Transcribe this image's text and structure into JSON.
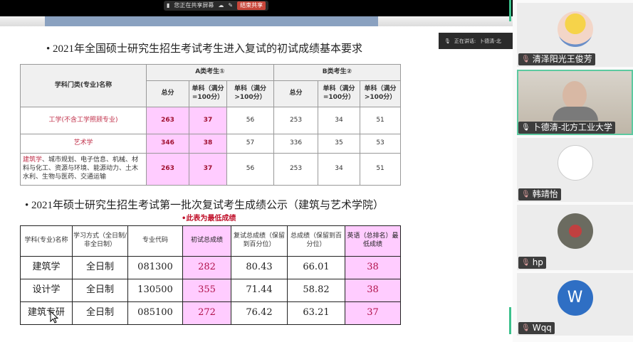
{
  "share_bar": {
    "status": "您正在共享屏幕",
    "stop_label": "结束共享"
  },
  "speaking": {
    "label": "正在讲话:",
    "name": "卜德清-北"
  },
  "slide": {
    "title1": "• 2021年全国硕士研究生招生考试考生进入复试的初试成绩基本要求",
    "table1": {
      "header": {
        "subject": "学科门类(专业)名称",
        "groupA": "A类考生①",
        "groupB": "B类考生②",
        "cols": [
          "总分",
          "单科（满分=100分）",
          "单科（满分>100分）",
          "总分",
          "单科（满分=100分）",
          "单科（满分>100分）"
        ]
      },
      "rows": [
        {
          "name": "工学(不含工学照顾专业)",
          "values": [
            "263",
            "37",
            "56",
            "253",
            "34",
            "51"
          ]
        },
        {
          "name": "艺术学",
          "values": [
            "346",
            "38",
            "57",
            "336",
            "35",
            "53"
          ]
        },
        {
          "name_red": "建筑学",
          "name_rest": "、城市规划、电子信息、机械、材料与化工、资源与环境、能源动力、土木水利、生物与医药、交通运输",
          "values": [
            "263",
            "37",
            "56",
            "253",
            "34",
            "51"
          ]
        }
      ]
    },
    "title2": "• 2021年硕士研究生招生考试第一批次复试考生成绩公示（建筑与艺术学院）",
    "note": "•此表为最低成绩",
    "table2": {
      "headers": [
        "学科(专业)名称",
        "学习方式（全日制/非全日制）",
        "专业代码",
        "初试总成绩",
        "复试总成绩（保留到百分位）",
        "总成绩（保留到百分位）",
        "英语（总排名）最低成绩"
      ],
      "rows": [
        [
          "建筑学",
          "全日制",
          "081300",
          "282",
          "80.43",
          "66.01",
          "38"
        ],
        [
          "设计学",
          "全日制",
          "130500",
          "355",
          "71.44",
          "58.82",
          "38"
        ],
        [
          "建筑专研",
          "全日制",
          "085100",
          "272",
          "76.42",
          "63.21",
          "37"
        ]
      ]
    }
  },
  "participants": [
    {
      "name": "清泽阳光王俊芳",
      "muted": true
    },
    {
      "name": "卜德清-北方工业大学",
      "muted": false,
      "video": true
    },
    {
      "name": "韩靖怡",
      "muted": true
    },
    {
      "name": "hp",
      "muted": true
    },
    {
      "name": "Wqq",
      "muted": true,
      "initial": "W"
    }
  ],
  "colors": {
    "highlight": "#ffccff",
    "accent_green": "#3cc08c",
    "avatar_blue": "#2f6fc4"
  }
}
